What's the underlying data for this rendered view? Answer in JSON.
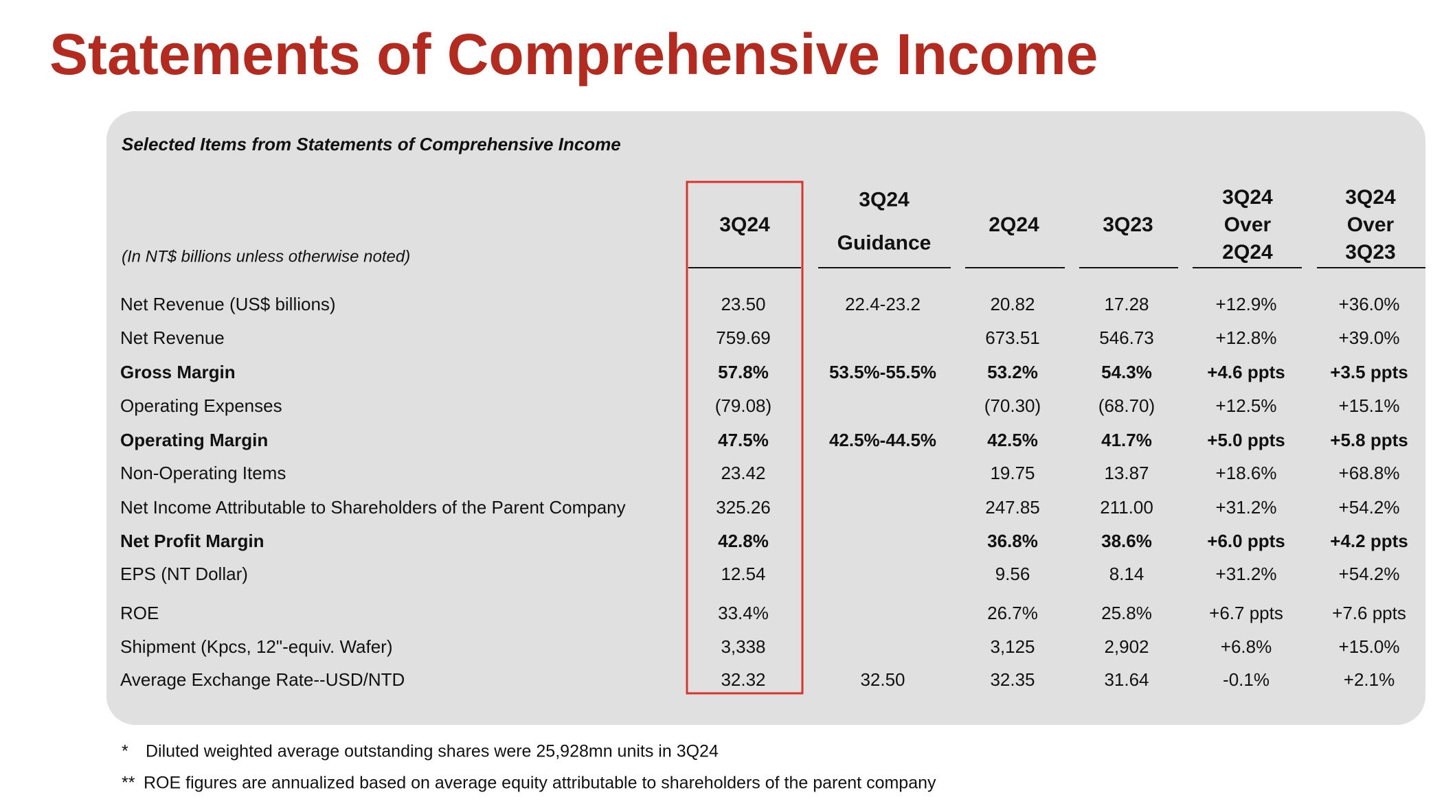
{
  "title": "Statements of Comprehensive Income",
  "table": {
    "caption": "Selected Items from Statements of Comprehensive Income",
    "unit_note": "(In NT$ billions unless otherwise noted)",
    "highlight_column": 0,
    "columns": [
      [
        "3Q24"
      ],
      [
        "3Q24",
        "Guidance"
      ],
      [
        "2Q24"
      ],
      [
        "3Q23"
      ],
      [
        "3Q24",
        "Over",
        "2Q24"
      ],
      [
        "3Q24",
        "Over",
        "3Q23"
      ]
    ],
    "rows": [
      {
        "label": "Net Revenue (US$ billions)",
        "bold": false,
        "cells": [
          "23.50",
          "22.4-23.2",
          "20.82",
          "17.28",
          "+12.9%",
          "+36.0%"
        ]
      },
      {
        "label": "Net Revenue",
        "bold": false,
        "cells": [
          "759.69",
          null,
          "673.51",
          "546.73",
          "+12.8%",
          "+39.0%"
        ]
      },
      {
        "label": "Gross Margin",
        "bold": true,
        "cells": [
          "57.8%",
          "53.5%-55.5%",
          "53.2%",
          "54.3%",
          "+4.6 ppts",
          "+3.5 ppts"
        ]
      },
      {
        "label": "Operating Expenses",
        "bold": false,
        "cells": [
          "(79.08)",
          null,
          "(70.30)",
          "(68.70)",
          "+12.5%",
          "+15.1%"
        ]
      },
      {
        "label": "Operating Margin",
        "bold": true,
        "cells": [
          "47.5%",
          "42.5%-44.5%",
          "42.5%",
          "41.7%",
          "+5.0 ppts",
          "+5.8 ppts"
        ]
      },
      {
        "label": "Non-Operating Items",
        "bold": false,
        "cells": [
          "23.42",
          null,
          "19.75",
          "13.87",
          "+18.6%",
          "+68.8%"
        ]
      },
      {
        "label": "Net Income Attributable to Shareholders of the Parent Company",
        "bold": false,
        "cells": [
          "325.26",
          null,
          "247.85",
          "211.00",
          "+31.2%",
          "+54.2%"
        ]
      },
      {
        "label": "Net Profit Margin",
        "bold": true,
        "cells": [
          "42.8%",
          null,
          "36.8%",
          "38.6%",
          "+6.0 ppts",
          "+4.2 ppts"
        ]
      },
      {
        "label": "EPS (NT Dollar)",
        "bold": false,
        "cells": [
          "12.54",
          null,
          "9.56",
          "8.14",
          "+31.2%",
          "+54.2%"
        ]
      },
      {
        "label": "ROE",
        "bold": false,
        "cells": [
          "33.4%",
          null,
          "26.7%",
          "25.8%",
          "+6.7 ppts",
          "+7.6 ppts"
        ]
      },
      {
        "label": "Shipment (Kpcs, 12\"-equiv. Wafer)",
        "bold": false,
        "cells": [
          "3,338",
          null,
          "3,125",
          "2,902",
          "+6.8%",
          "+15.0%"
        ]
      },
      {
        "label": "Average Exchange Rate--USD/NTD",
        "bold": false,
        "cells": [
          "32.32",
          "32.50",
          "32.35",
          "31.64",
          "-0.1%",
          "+2.1%"
        ]
      }
    ]
  },
  "footnotes": [
    {
      "marker": "*",
      "text": "Diluted weighted average outstanding shares were 25,928mn units in 3Q24"
    },
    {
      "marker": "**",
      "text": "ROE figures are annualized based on average equity attributable to shareholders of the parent company"
    }
  ]
}
